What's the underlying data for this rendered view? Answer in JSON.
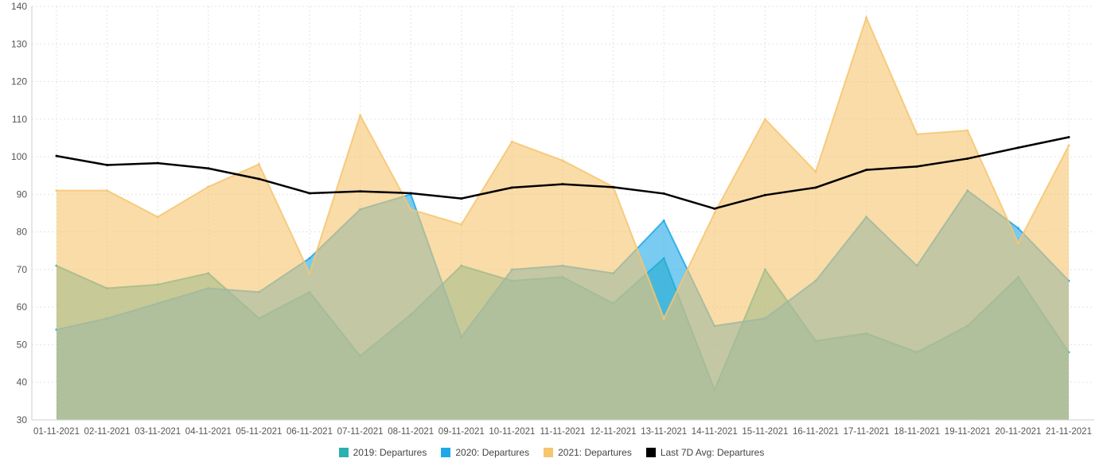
{
  "chart_data": {
    "type": "area",
    "title": "",
    "xlabel": "",
    "ylabel": "",
    "ylim": [
      30,
      140
    ],
    "yticks": [
      30,
      40,
      50,
      60,
      70,
      80,
      90,
      100,
      110,
      120,
      130,
      140
    ],
    "grid": true,
    "legend_position": "bottom-center",
    "categories": [
      "01-11-2021",
      "02-11-2021",
      "03-11-2021",
      "04-11-2021",
      "05-11-2021",
      "06-11-2021",
      "07-11-2021",
      "08-11-2021",
      "09-11-2021",
      "10-11-2021",
      "11-11-2021",
      "12-11-2021",
      "13-11-2021",
      "14-11-2021",
      "15-11-2021",
      "16-11-2021",
      "17-11-2021",
      "18-11-2021",
      "19-11-2021",
      "20-11-2021",
      "21-11-2021"
    ],
    "series": [
      {
        "name": "2019: Departures",
        "type": "area",
        "color": "#2ab0b0",
        "values": [
          71,
          65,
          66,
          69,
          57,
          64,
          47,
          58,
          71,
          67,
          68,
          61,
          73,
          38,
          70,
          51,
          53,
          48,
          55,
          68,
          48
        ]
      },
      {
        "name": "2020: Departures",
        "type": "area",
        "color": "#1fa8e8",
        "values": [
          54,
          57,
          61,
          65,
          64,
          73,
          86,
          90,
          52,
          70,
          71,
          69,
          83,
          55,
          57,
          67,
          84,
          71,
          91,
          81,
          67
        ]
      },
      {
        "name": "2021: Departures",
        "type": "area",
        "color": "#f6c56f",
        "values": [
          91,
          91,
          84,
          92,
          98,
          69,
          111,
          86,
          82,
          104,
          99,
          92,
          57,
          85,
          110,
          96,
          137,
          106,
          107,
          77,
          103
        ]
      },
      {
        "name": "Last 7D Avg: Departures",
        "type": "line",
        "color": "#000000",
        "values": [
          100.2,
          97.8,
          98.3,
          96.9,
          94.1,
          90.3,
          90.8,
          90.3,
          88.9,
          91.8,
          92.7,
          91.9,
          90.2,
          86.2,
          89.8,
          91.8,
          96.5,
          97.4,
          99.5,
          102.4,
          105.2
        ]
      }
    ]
  }
}
